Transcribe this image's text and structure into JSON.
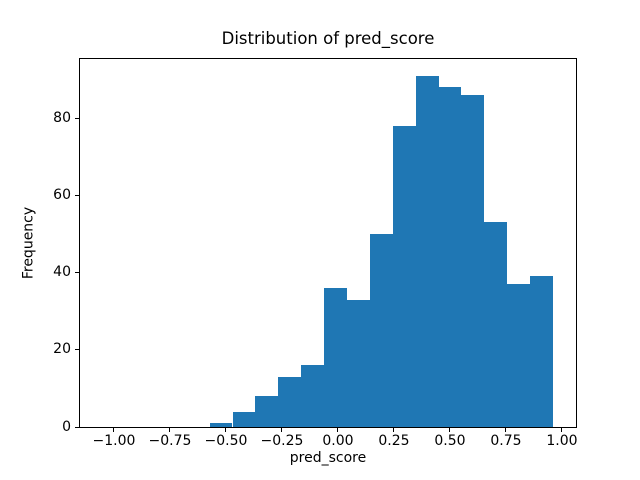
{
  "figure": {
    "background_color": "#ffffff",
    "text_color": "#000000",
    "spine_color": "#000000"
  },
  "chart_data": {
    "type": "bar",
    "kind": "histogram",
    "title": "Distribution of pred_score",
    "xlabel": "pred_score",
    "ylabel": "Frequency",
    "bar_color": "#1f77b4",
    "bin_edges": [
      -0.573,
      -0.4708,
      -0.3686,
      -0.2664,
      -0.1642,
      -0.062,
      0.0402,
      0.1424,
      0.2446,
      0.3468,
      0.449,
      0.5512,
      0.6534,
      0.7556,
      0.8578,
      0.96
    ],
    "counts": [
      1,
      4,
      8,
      13,
      16,
      36,
      33,
      50,
      78,
      91,
      88,
      86,
      53,
      37,
      39
    ],
    "total_count": 633,
    "xlim": [
      -1.156,
      1.0625
    ],
    "ylim": [
      0,
      95.55
    ],
    "xticks": [
      -1.0,
      -0.75,
      -0.5,
      -0.25,
      0.0,
      0.25,
      0.5,
      0.75,
      1.0
    ],
    "xtick_labels": [
      "−1.00",
      "−0.75",
      "−0.50",
      "−0.25",
      "0.00",
      "0.25",
      "0.50",
      "0.75",
      "1.00"
    ],
    "yticks": [
      0,
      20,
      40,
      60,
      80
    ],
    "ytick_labels": [
      "0",
      "20",
      "40",
      "60",
      "80"
    ],
    "grid": false,
    "legend": null
  }
}
